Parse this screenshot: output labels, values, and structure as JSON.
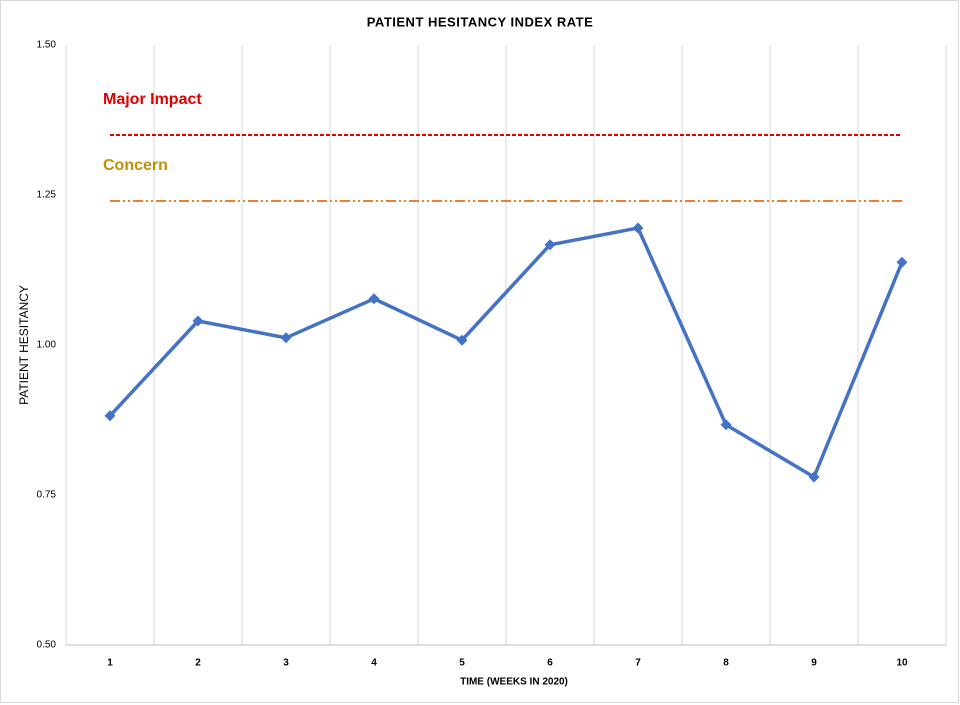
{
  "chart_data": {
    "type": "line",
    "title": "PATIENT HESITANCY INDEX RATE",
    "x_label": "TIME (WEEKS IN 2020)",
    "y_label": "PATIENT HESITANCY",
    "categories": [
      "1",
      "2",
      "3",
      "4",
      "5",
      "6",
      "7",
      "8",
      "9",
      "10"
    ],
    "series": [
      {
        "name": "Patient Hesitancy",
        "color": "#4472c4",
        "dash": "solid",
        "marker": "diamond",
        "values": [
          0.882,
          1.04,
          1.012,
          1.077,
          1.008,
          1.167,
          1.195,
          0.867,
          0.78,
          1.138
        ]
      },
      {
        "name": "Major Impact",
        "color": "#e00000",
        "label_color": "#e00000",
        "dash": "dashed",
        "values": [
          1.35,
          1.35,
          1.35,
          1.35,
          1.35,
          1.35,
          1.35,
          1.35,
          1.35,
          1.35
        ]
      },
      {
        "name": "Concern",
        "color": "#ed7d31",
        "label_color": "#bf9000",
        "dash": "dash-dot-dot",
        "values": [
          1.24,
          1.24,
          1.24,
          1.24,
          1.24,
          1.24,
          1.24,
          1.24,
          1.24,
          1.24
        ]
      }
    ],
    "ylim": [
      0.5,
      1.5
    ],
    "yticks": [
      {
        "value": 0.5,
        "label": "0.50"
      },
      {
        "value": 0.75,
        "label": "0.75"
      },
      {
        "value": 1,
        "label": "1.00"
      },
      {
        "value": 1.25,
        "label": "1.25"
      },
      {
        "value": 1.5,
        "label": "1.50"
      }
    ],
    "grid": "vertical"
  }
}
